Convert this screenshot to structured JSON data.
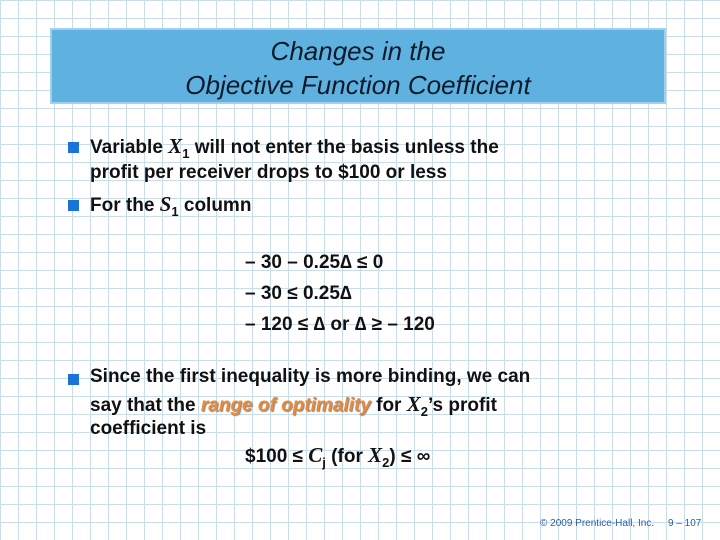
{
  "title": [
    "Changes in the",
    "Objective Function Coefficient"
  ],
  "bullets": [
    {
      "parts": [
        "Variable ",
        "X",
        "1",
        " will not enter the basis unless the",
        "profit per receiver drops to $100 or less"
      ]
    },
    {
      "parts": [
        "For the ",
        "S",
        "1",
        " column"
      ]
    },
    {
      "parts": [
        "Since the first inequality is more binding, we can",
        "say that the ",
        "range of optimality",
        " for ",
        "X",
        "2",
        "’s profit",
        "coefficient is"
      ]
    }
  ],
  "equations": [
    "– 30 – 0.25∆ ≤ 0",
    "– 30 ≤ 0.25∆",
    "– 120 ≤ ∆ or ∆ ≥ – 120"
  ],
  "formula": [
    "$100 ≤ ",
    "C",
    "j",
    " (for ",
    "X",
    "2",
    ") ≤ ∞"
  ],
  "footer": {
    "copyright": "© 2009 Prentice-Hall, Inc.",
    "page": "9 – 107"
  }
}
